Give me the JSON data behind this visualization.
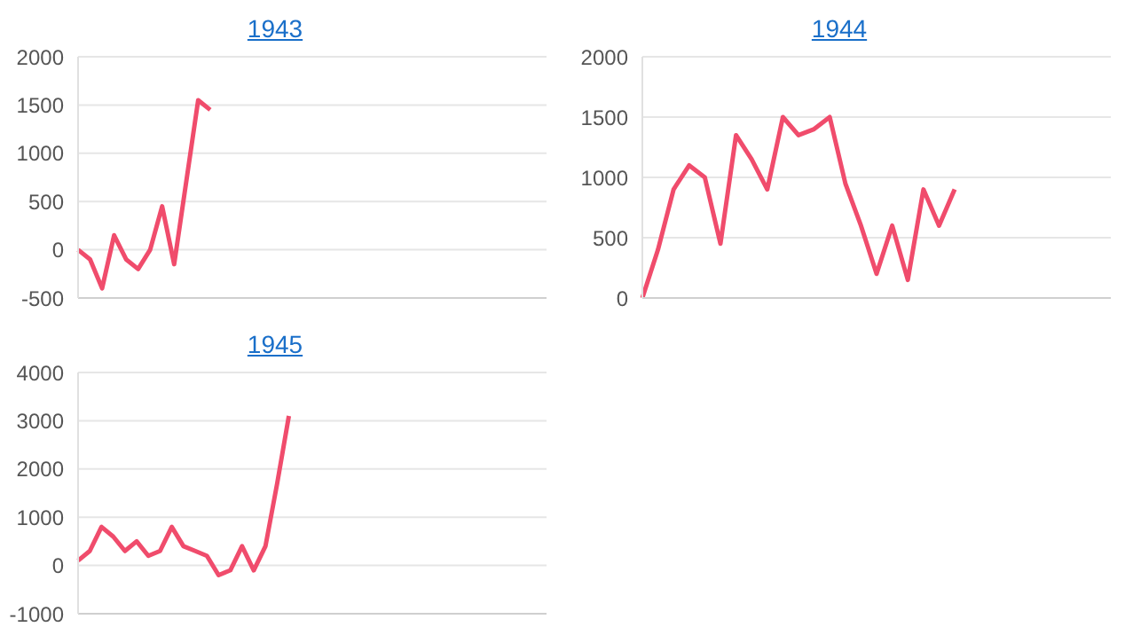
{
  "chart_data": [
    {
      "type": "line",
      "title": "1943",
      "categories": [
        null,
        null,
        null,
        null,
        null,
        null,
        null,
        null,
        null,
        null,
        null,
        null,
        null,
        null,
        null,
        null,
        null,
        null,
        null,
        null,
        null,
        null,
        null,
        null,
        null,
        null,
        null,
        null,
        null,
        null,
        null,
        null,
        null,
        null,
        null,
        null,
        null,
        null,
        null,
        null
      ],
      "series": [
        {
          "color": "#f04c6c",
          "values": [
            0,
            -100,
            -400,
            150,
            -100,
            -200,
            0,
            450,
            -150,
            700,
            1550,
            1450,
            null,
            null,
            null,
            null,
            null,
            null,
            null,
            null,
            null,
            null,
            null,
            null,
            null,
            null,
            null,
            null,
            null,
            null,
            null,
            null,
            null,
            null,
            null,
            null,
            null,
            null,
            null,
            null
          ]
        }
      ],
      "ylim": [
        -500,
        2000
      ],
      "yticks": [
        -500,
        0,
        500,
        1000,
        1500,
        2000
      ],
      "grid": "y",
      "tick_labels": "y",
      "marker": "none"
    },
    {
      "type": "line",
      "title": "1944",
      "categories": [
        null,
        null,
        null,
        null,
        null,
        null,
        null,
        null,
        null,
        null,
        null,
        null,
        null,
        null,
        null,
        null,
        null,
        null,
        null,
        null,
        null,
        null,
        null,
        null,
        null,
        null,
        null,
        null,
        null,
        null,
        null
      ],
      "series": [
        {
          "color": "#f04c6c",
          "values": [
            0,
            400,
            900,
            1100,
            1000,
            450,
            1350,
            1150,
            900,
            1500,
            1350,
            1400,
            1500,
            950,
            600,
            200,
            600,
            150,
            900,
            600,
            900,
            null,
            null,
            null,
            null,
            null,
            null,
            null,
            null,
            null,
            null
          ]
        }
      ],
      "ylim": [
        0,
        2000
      ],
      "yticks": [
        0,
        500,
        1000,
        1500,
        2000
      ],
      "grid": "y",
      "tick_labels": "y",
      "marker": "none"
    },
    {
      "type": "line",
      "title": "1945",
      "categories": [
        null,
        null,
        null,
        null,
        null,
        null,
        null,
        null,
        null,
        null,
        null,
        null,
        null,
        null,
        null,
        null,
        null,
        null,
        null,
        null,
        null,
        null,
        null,
        null,
        null,
        null,
        null,
        null,
        null,
        null,
        null,
        null,
        null,
        null,
        null,
        null,
        null,
        null,
        null,
        null,
        null
      ],
      "series": [
        {
          "color": "#f04c6c",
          "values": [
            100,
            300,
            800,
            600,
            300,
            500,
            200,
            300,
            800,
            400,
            300,
            200,
            -200,
            -100,
            400,
            -100,
            400,
            1700,
            3100,
            null,
            null,
            null,
            null,
            null,
            null,
            null,
            null,
            null,
            null,
            null,
            null,
            null,
            null,
            null,
            null,
            null,
            null,
            null,
            null,
            null,
            null
          ]
        }
      ],
      "ylim": [
        -1000,
        4000
      ],
      "yticks": [
        -1000,
        0,
        1000,
        2000,
        3000,
        4000
      ],
      "grid": "y",
      "tick_labels": "y",
      "marker": "none"
    }
  ]
}
